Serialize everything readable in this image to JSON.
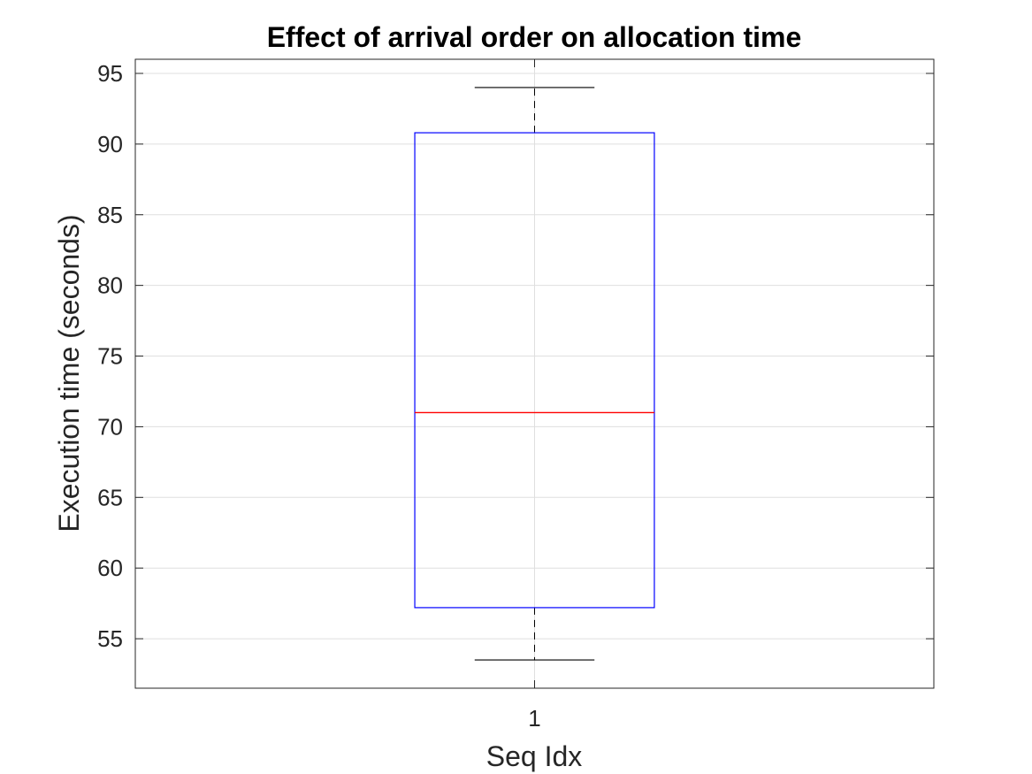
{
  "chart_data": {
    "type": "box",
    "title": "Effect of arrival order on allocation time",
    "xlabel": "Seq Idx",
    "ylabel": "Execution time (seconds)",
    "categories": [
      "1"
    ],
    "xlim": [
      0.5,
      1.5
    ],
    "ylim": [
      51.5,
      96
    ],
    "yticks": [
      55,
      60,
      65,
      70,
      75,
      80,
      85,
      90,
      95
    ],
    "grid": true,
    "boxes": [
      {
        "category": "1",
        "whisker_low": 53.5,
        "q1": 57.2,
        "median": 71.0,
        "q3": 90.8,
        "whisker_high": 94.0
      }
    ],
    "colors": {
      "box": "#0000ff",
      "median": "#ff0000",
      "whisker": "#000000",
      "grid": "#dfdfdf",
      "axes": "#262626"
    }
  }
}
